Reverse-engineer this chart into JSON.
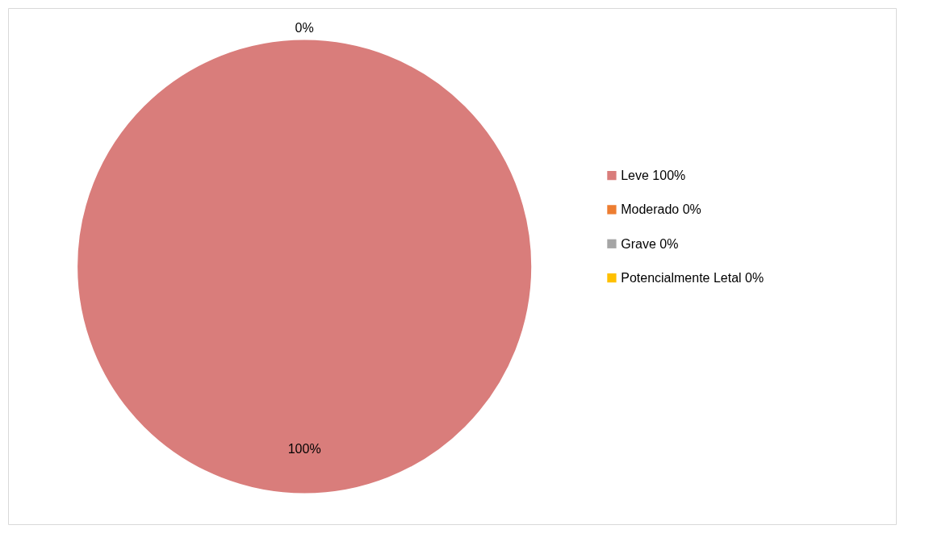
{
  "chart_data": {
    "type": "pie",
    "categories": [
      "Leve 100%",
      "Moderado 0%",
      "Grave 0%",
      "Potencialmente Letal 0%"
    ],
    "values": [
      100,
      0,
      0,
      0
    ],
    "colors": [
      "#d97d7b",
      "#ed7d31",
      "#a5a5a5",
      "#ffc000"
    ],
    "value_labels": [
      "100%",
      "0%",
      null,
      null
    ],
    "legend": "right"
  }
}
